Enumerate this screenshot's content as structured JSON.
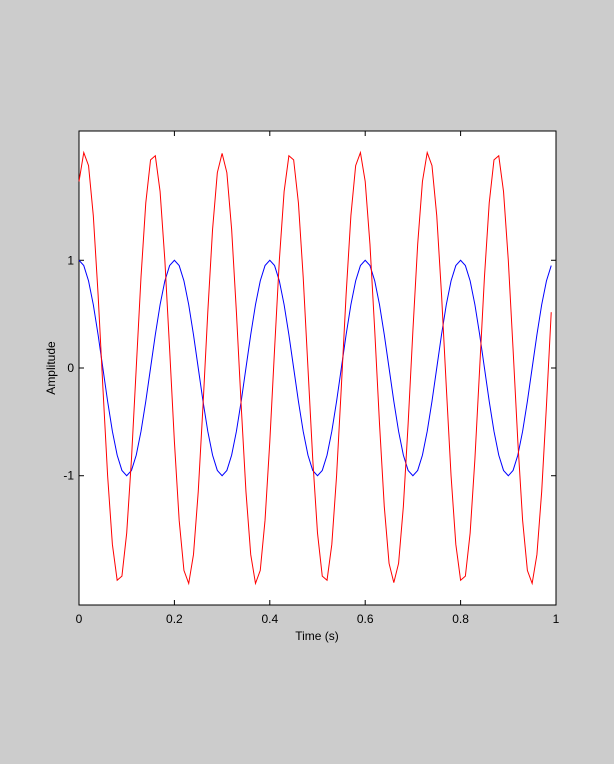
{
  "chart_data": {
    "type": "line",
    "title": "",
    "xlabel": "Time (s)",
    "ylabel": "Amplitude",
    "xlim": [
      0,
      1
    ],
    "ylim": [
      -2.2,
      2.2
    ],
    "xticks": [
      0,
      0.2,
      0.4,
      0.6,
      0.8,
      1
    ],
    "xtick_labels": [
      "0",
      "0.2",
      "0.4",
      "0.6",
      "0.8",
      "1"
    ],
    "yticks": [
      -1,
      0,
      1
    ],
    "ytick_labels": [
      "-1",
      "0",
      "1"
    ],
    "grid": false,
    "legend": "none",
    "background": "#cccccc",
    "plot_background": "#ffffff",
    "series": [
      {
        "color": "#0000ff",
        "x": [
          0.0,
          0.01,
          0.02,
          0.03,
          0.04,
          0.05,
          0.06,
          0.07,
          0.08,
          0.09,
          0.1,
          0.11,
          0.12,
          0.13,
          0.14,
          0.15,
          0.16,
          0.17,
          0.18,
          0.19,
          0.2,
          0.21,
          0.22,
          0.23,
          0.24,
          0.25,
          0.26,
          0.27,
          0.28,
          0.29,
          0.3,
          0.31,
          0.32,
          0.33,
          0.34,
          0.35,
          0.36,
          0.37,
          0.38,
          0.39,
          0.4,
          0.41,
          0.42,
          0.43,
          0.44,
          0.45,
          0.46,
          0.47,
          0.48,
          0.49,
          0.5,
          0.51,
          0.52,
          0.53,
          0.54,
          0.55,
          0.56,
          0.57,
          0.58,
          0.59,
          0.6,
          0.61,
          0.62,
          0.63,
          0.64,
          0.65,
          0.66,
          0.67,
          0.68,
          0.69,
          0.7,
          0.71,
          0.72,
          0.73,
          0.74,
          0.75,
          0.76,
          0.77,
          0.78,
          0.79,
          0.8,
          0.81,
          0.82,
          0.83,
          0.84,
          0.85,
          0.86,
          0.87,
          0.88,
          0.89,
          0.9,
          0.91,
          0.92,
          0.93,
          0.94,
          0.95,
          0.96,
          0.97,
          0.98,
          0.99
        ],
        "y": [
          1.0,
          0.951,
          0.809,
          0.588,
          0.309,
          0.0,
          -0.309,
          -0.588,
          -0.809,
          -0.951,
          -1.0,
          -0.951,
          -0.809,
          -0.588,
          -0.309,
          0.0,
          0.309,
          0.588,
          0.809,
          0.951,
          1.0,
          0.951,
          0.809,
          0.588,
          0.309,
          0.0,
          -0.309,
          -0.588,
          -0.809,
          -0.951,
          -1.0,
          -0.951,
          -0.809,
          -0.588,
          -0.309,
          0.0,
          0.309,
          0.588,
          0.809,
          0.951,
          1.0,
          0.951,
          0.809,
          0.588,
          0.309,
          0.0,
          -0.309,
          -0.588,
          -0.809,
          -0.951,
          -1.0,
          -0.951,
          -0.809,
          -0.588,
          -0.309,
          0.0,
          0.309,
          0.588,
          0.809,
          0.951,
          1.0,
          0.951,
          0.809,
          0.588,
          0.309,
          0.0,
          -0.309,
          -0.588,
          -0.809,
          -0.951,
          -1.0,
          -0.951,
          -0.809,
          -0.588,
          -0.309,
          0.0,
          0.309,
          0.588,
          0.809,
          0.951,
          1.0,
          0.951,
          0.809,
          0.588,
          0.309,
          0.0,
          -0.309,
          -0.588,
          -0.809,
          -0.951,
          -1.0,
          -0.951,
          -0.809,
          -0.588,
          -0.309,
          0.0,
          0.309,
          0.588,
          0.809,
          0.951
        ]
      },
      {
        "color": "#ff0000",
        "x": [
          0.0,
          0.01,
          0.02,
          0.03,
          0.04,
          0.05,
          0.06,
          0.07,
          0.08,
          0.09,
          0.1,
          0.11,
          0.12,
          0.13,
          0.14,
          0.15,
          0.16,
          0.17,
          0.18,
          0.19,
          0.2,
          0.21,
          0.22,
          0.23,
          0.24,
          0.25,
          0.26,
          0.27,
          0.28,
          0.29,
          0.3,
          0.31,
          0.32,
          0.33,
          0.34,
          0.35,
          0.36,
          0.37,
          0.38,
          0.39,
          0.4,
          0.41,
          0.42,
          0.43,
          0.44,
          0.45,
          0.46,
          0.47,
          0.48,
          0.49,
          0.5,
          0.51,
          0.52,
          0.53,
          0.54,
          0.55,
          0.56,
          0.57,
          0.58,
          0.59,
          0.6,
          0.61,
          0.62,
          0.63,
          0.64,
          0.65,
          0.66,
          0.67,
          0.68,
          0.69,
          0.7,
          0.71,
          0.72,
          0.73,
          0.74,
          0.75,
          0.76,
          0.77,
          0.78,
          0.79,
          0.8,
          0.81,
          0.82,
          0.83,
          0.84,
          0.85,
          0.86,
          0.87,
          0.88,
          0.89,
          0.9,
          0.91,
          0.92,
          0.93,
          0.94,
          0.95,
          0.96,
          0.97,
          0.98,
          0.99
        ],
        "y": [
          1.732,
          2.0,
          1.879,
          1.414,
          0.684,
          -0.174,
          -1.0,
          -1.638,
          -1.97,
          -1.932,
          -1.532,
          -0.845,
          0.0,
          0.845,
          1.532,
          1.932,
          1.97,
          1.638,
          1.0,
          0.174,
          -0.684,
          -1.414,
          -1.879,
          -2.0,
          -1.732,
          -1.147,
          -0.347,
          0.518,
          1.286,
          1.813,
          1.992,
          1.813,
          1.286,
          0.518,
          -0.347,
          -1.147,
          -1.732,
          -2.0,
          -1.879,
          -1.414,
          -0.684,
          0.174,
          1.0,
          1.638,
          1.97,
          1.932,
          1.532,
          0.845,
          0.0,
          -0.845,
          -1.532,
          -1.932,
          -1.97,
          -1.638,
          -1.0,
          -0.174,
          0.684,
          1.414,
          1.879,
          2.0,
          1.732,
          1.147,
          0.347,
          -0.518,
          -1.286,
          -1.813,
          -1.992,
          -1.813,
          -1.286,
          -0.518,
          0.347,
          1.147,
          1.732,
          2.0,
          1.879,
          1.414,
          0.684,
          -0.174,
          -1.0,
          -1.638,
          -1.97,
          -1.932,
          -1.532,
          -0.845,
          0.0,
          0.845,
          1.532,
          1.932,
          1.97,
          1.638,
          1.0,
          0.174,
          -0.684,
          -1.414,
          -1.879,
          -2.0,
          -1.732,
          -1.147,
          -0.347,
          0.518
        ]
      }
    ]
  }
}
